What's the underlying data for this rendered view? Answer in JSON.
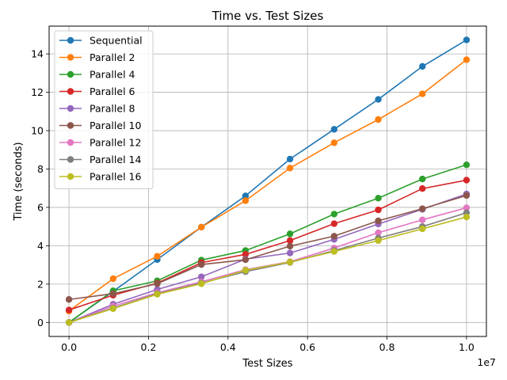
{
  "chart_data": {
    "type": "line",
    "title": "Time vs. Test Sizes",
    "xlabel": "Test Sizes",
    "ylabel": "Time (seconds)",
    "x_offset_label": "1e7",
    "x_multiplier": 10000000,
    "xlim": [
      -0.05,
      1.05
    ],
    "ylim": [
      -0.73,
      15.45
    ],
    "x_ticks": [
      0.0,
      0.2,
      0.4,
      0.6,
      0.8,
      1.0
    ],
    "x_tick_labels": [
      "0.0",
      "0.2",
      "0.4",
      "0.6",
      "0.8",
      "1.0"
    ],
    "y_ticks": [
      0,
      2,
      4,
      6,
      8,
      10,
      12,
      14
    ],
    "y_tick_labels": [
      "0",
      "2",
      "4",
      "6",
      "8",
      "10",
      "12",
      "14"
    ],
    "grid": true,
    "legend_position": "top-left",
    "x": [
      0.0,
      0.111,
      0.222,
      0.333,
      0.444,
      0.556,
      0.667,
      0.778,
      0.889,
      1.0
    ],
    "series": [
      {
        "name": "Sequential",
        "color": "#1f77b4",
        "values": [
          0.0,
          1.62,
          3.28,
          4.97,
          6.6,
          8.52,
          10.07,
          11.63,
          13.35,
          14.73
        ]
      },
      {
        "name": "Parallel 2",
        "color": "#ff7f0e",
        "values": [
          0.6,
          2.28,
          3.45,
          4.97,
          6.35,
          8.05,
          9.37,
          10.58,
          11.92,
          13.7
        ]
      },
      {
        "name": "Parallel 4",
        "color": "#2ca02c",
        "values": [
          0.0,
          1.65,
          2.17,
          3.25,
          3.75,
          4.62,
          5.65,
          6.48,
          7.48,
          8.22
        ]
      },
      {
        "name": "Parallel 6",
        "color": "#d62728",
        "values": [
          0.65,
          1.42,
          2.05,
          3.12,
          3.55,
          4.27,
          5.15,
          5.87,
          6.98,
          7.42
        ]
      },
      {
        "name": "Parallel 8",
        "color": "#9467bd",
        "values": [
          0.0,
          0.95,
          1.72,
          2.38,
          3.3,
          3.62,
          4.33,
          5.13,
          5.9,
          6.7
        ]
      },
      {
        "name": "Parallel 10",
        "color": "#8c564b",
        "values": [
          1.2,
          1.5,
          2.02,
          3.02,
          3.27,
          3.98,
          4.5,
          5.3,
          5.93,
          6.62
        ]
      },
      {
        "name": "Parallel 12",
        "color": "#e377c2",
        "values": [
          0.0,
          0.85,
          1.55,
          2.12,
          2.75,
          3.17,
          3.88,
          4.68,
          5.35,
          5.98
        ]
      },
      {
        "name": "Parallel 14",
        "color": "#7f7f7f",
        "values": [
          0.0,
          0.75,
          1.5,
          2.05,
          2.65,
          3.13,
          3.75,
          4.4,
          5.0,
          5.72
        ]
      },
      {
        "name": "Parallel 16",
        "color": "#bcbd22",
        "values": [
          0.0,
          0.72,
          1.47,
          2.02,
          2.72,
          3.15,
          3.7,
          4.27,
          4.88,
          5.5
        ]
      }
    ]
  }
}
